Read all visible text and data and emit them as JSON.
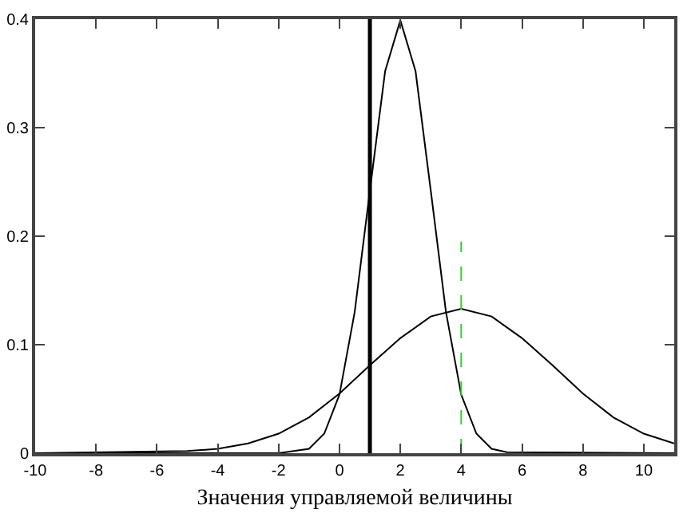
{
  "chart_data": {
    "type": "line",
    "xlabel": "Значения управляемой величины",
    "xlim": [
      -10,
      11
    ],
    "ylim": [
      0,
      0.4
    ],
    "xticks": [
      -10,
      -8,
      -6,
      -4,
      -2,
      0,
      2,
      4,
      6,
      8,
      10
    ],
    "yticks": [
      0,
      0.1,
      0.2,
      0.3,
      0.4
    ],
    "grid": false,
    "marker": "none",
    "series": [
      {
        "color": "#000000",
        "x": [
          -10,
          -2,
          -1,
          -0.5,
          0,
          0.5,
          1,
          1.5,
          2,
          2.5,
          3,
          3.5,
          4,
          4.5,
          5,
          5.5,
          11
        ],
        "values": [
          0,
          0,
          0.004,
          0.018,
          0.054,
          0.13,
          0.242,
          0.352,
          0.399,
          0.352,
          0.242,
          0.13,
          0.054,
          0.018,
          0.004,
          0.001,
          0
        ]
      },
      {
        "color": "#000000",
        "x": [
          -10,
          -5,
          -4,
          -3,
          -2,
          -1,
          0,
          1,
          2,
          3,
          4,
          5,
          6,
          7,
          8,
          9,
          10,
          11
        ],
        "values": [
          0,
          0.002,
          0.004,
          0.009,
          0.018,
          0.033,
          0.055,
          0.081,
          0.106,
          0.126,
          0.133,
          0.126,
          0.106,
          0.081,
          0.055,
          0.033,
          0.018,
          0.009
        ]
      },
      {
        "color": "#33cc33",
        "line_style": "dashed",
        "x": [
          4,
          4
        ],
        "values": [
          0,
          0.195
        ]
      }
    ],
    "ref_lines": [
      {
        "axis": "x",
        "value": 1,
        "color": "#000000"
      }
    ]
  }
}
